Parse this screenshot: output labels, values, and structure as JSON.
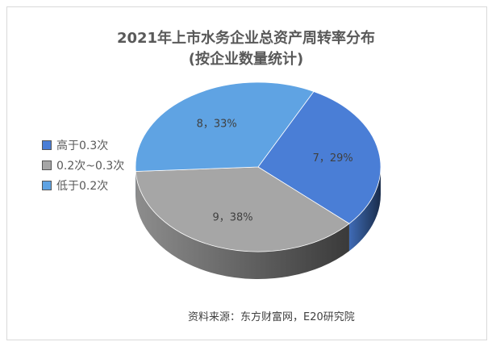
{
  "chart_data": {
    "type": "pie",
    "title": "2021年上市水务企业总资产周转率分布",
    "subtitle": "(按企业数量统计)",
    "categories": [
      "高于0.3次",
      "0.2次~0.3次",
      "低于0.2次"
    ],
    "values": [
      7,
      9,
      8
    ],
    "percentages": [
      29,
      38,
      33
    ],
    "data_labels": [
      "7，29%",
      "9，38%",
      "8，33%"
    ],
    "colors": [
      "#4a7ed6",
      "#a6a6a6",
      "#5fa3e3"
    ],
    "legend_position": "left",
    "three_d": true
  },
  "source": "资料来源：东方财富网，E20研究院"
}
